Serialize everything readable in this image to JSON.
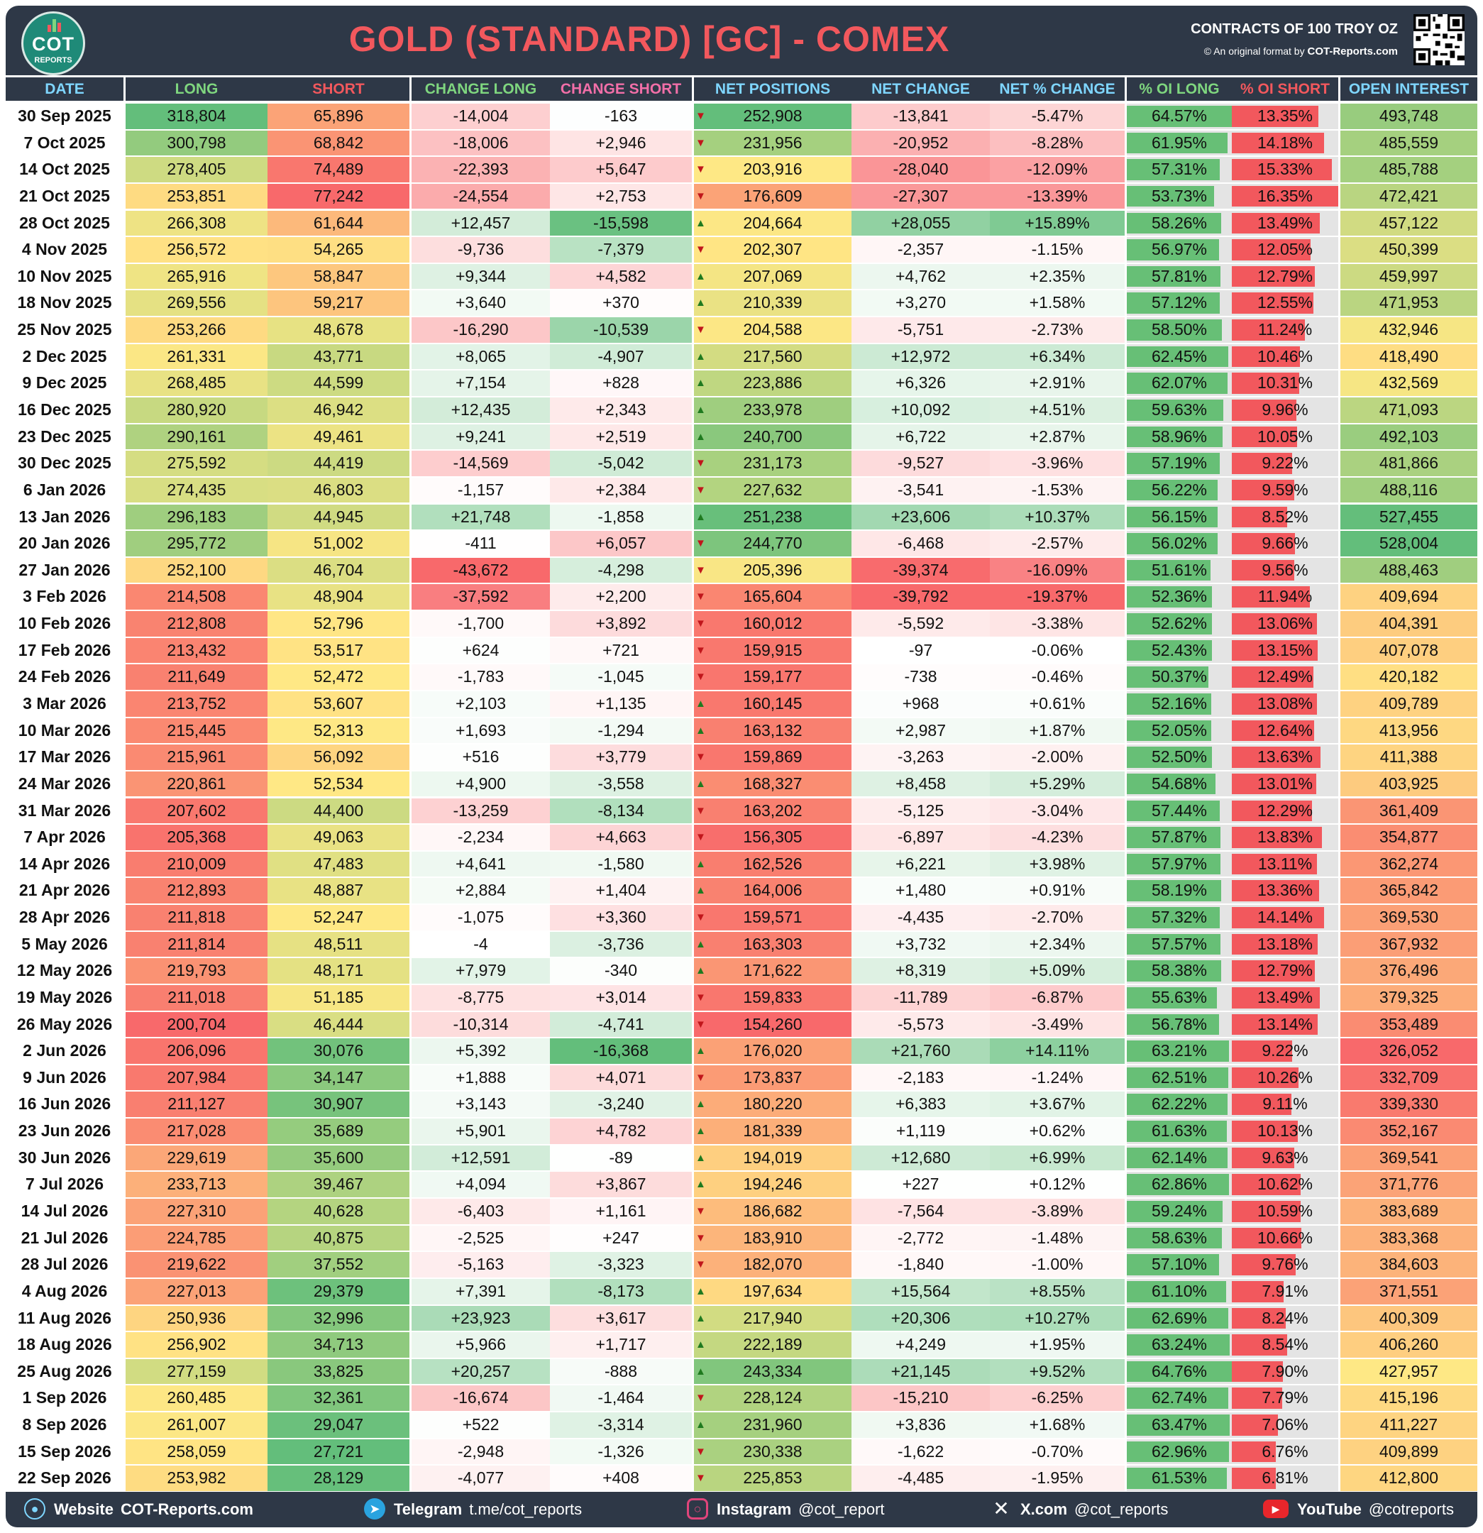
{
  "header": {
    "title": "GOLD (STANDARD) [GC] - COMEX",
    "contracts": "CONTRACTS OF 100 TROY OZ",
    "original_prefix": "© An original format by",
    "original_site": "COT-Reports.com",
    "logo_text": "COT",
    "logo_sub": "REPORTS"
  },
  "columns": {
    "date": "DATE",
    "long": "LONG",
    "short": "SHORT",
    "change_long": "CHANGE LONG",
    "change_short": "CHANGE SHORT",
    "net_positions": "NET POSITIONS",
    "net_change": "NET CHANGE",
    "net_pct_change": "NET % CHANGE",
    "oi_long": "% OI LONG",
    "oi_short": "% OI SHORT",
    "open_interest": "OPEN INTEREST"
  },
  "colors": {
    "header_bg": "#2e3847",
    "long_header": "#7fd67f",
    "short_header": "#f2585d",
    "accent": "#f2585d"
  },
  "rows": [
    [
      "30 Sep 2025",
      "318,804",
      "65,896",
      "-14,004",
      "-163",
      "252,908",
      "-13,841",
      "-5.47%",
      "64.57%",
      "13.35%",
      "493,748"
    ],
    [
      "7 Oct 2025",
      "300,798",
      "68,842",
      "-18,006",
      "+2,946",
      "231,956",
      "-20,952",
      "-8.28%",
      "61.95%",
      "14.18%",
      "485,559"
    ],
    [
      "14 Oct 2025",
      "278,405",
      "74,489",
      "-22,393",
      "+5,647",
      "203,916",
      "-28,040",
      "-12.09%",
      "57.31%",
      "15.33%",
      "485,788"
    ],
    [
      "21 Oct 2025",
      "253,851",
      "77,242",
      "-24,554",
      "+2,753",
      "176,609",
      "-27,307",
      "-13.39%",
      "53.73%",
      "16.35%",
      "472,421"
    ],
    [
      "28 Oct 2025",
      "266,308",
      "61,644",
      "+12,457",
      "-15,598",
      "204,664",
      "+28,055",
      "+15.89%",
      "58.26%",
      "13.49%",
      "457,122"
    ],
    [
      "4 Nov 2025",
      "256,572",
      "54,265",
      "-9,736",
      "-7,379",
      "202,307",
      "-2,357",
      "-1.15%",
      "56.97%",
      "12.05%",
      "450,399"
    ],
    [
      "10 Nov 2025",
      "265,916",
      "58,847",
      "+9,344",
      "+4,582",
      "207,069",
      "+4,762",
      "+2.35%",
      "57.81%",
      "12.79%",
      "459,997"
    ],
    [
      "18 Nov 2025",
      "269,556",
      "59,217",
      "+3,640",
      "+370",
      "210,339",
      "+3,270",
      "+1.58%",
      "57.12%",
      "12.55%",
      "471,953"
    ],
    [
      "25 Nov 2025",
      "253,266",
      "48,678",
      "-16,290",
      "-10,539",
      "204,588",
      "-5,751",
      "-2.73%",
      "58.50%",
      "11.24%",
      "432,946"
    ],
    [
      "2 Dec 2025",
      "261,331",
      "43,771",
      "+8,065",
      "-4,907",
      "217,560",
      "+12,972",
      "+6.34%",
      "62.45%",
      "10.46%",
      "418,490"
    ],
    [
      "9 Dec 2025",
      "268,485",
      "44,599",
      "+7,154",
      "+828",
      "223,886",
      "+6,326",
      "+2.91%",
      "62.07%",
      "10.31%",
      "432,569"
    ],
    [
      "16 Dec 2025",
      "280,920",
      "46,942",
      "+12,435",
      "+2,343",
      "233,978",
      "+10,092",
      "+4.51%",
      "59.63%",
      "9.96%",
      "471,093"
    ],
    [
      "23 Dec 2025",
      "290,161",
      "49,461",
      "+9,241",
      "+2,519",
      "240,700",
      "+6,722",
      "+2.87%",
      "58.96%",
      "10.05%",
      "492,103"
    ],
    [
      "30 Dec 2025",
      "275,592",
      "44,419",
      "-14,569",
      "-5,042",
      "231,173",
      "-9,527",
      "-3.96%",
      "57.19%",
      "9.22%",
      "481,866"
    ],
    [
      "6 Jan 2026",
      "274,435",
      "46,803",
      "-1,157",
      "+2,384",
      "227,632",
      "-3,541",
      "-1.53%",
      "56.22%",
      "9.59%",
      "488,116"
    ],
    [
      "13 Jan 2026",
      "296,183",
      "44,945",
      "+21,748",
      "-1,858",
      "251,238",
      "+23,606",
      "+10.37%",
      "56.15%",
      "8.52%",
      "527,455"
    ],
    [
      "20 Jan 2026",
      "295,772",
      "51,002",
      "-411",
      "+6,057",
      "244,770",
      "-6,468",
      "-2.57%",
      "56.02%",
      "9.66%",
      "528,004"
    ],
    [
      "27 Jan 2026",
      "252,100",
      "46,704",
      "-43,672",
      "-4,298",
      "205,396",
      "-39,374",
      "-16.09%",
      "51.61%",
      "9.56%",
      "488,463"
    ],
    [
      "3 Feb 2026",
      "214,508",
      "48,904",
      "-37,592",
      "+2,200",
      "165,604",
      "-39,792",
      "-19.37%",
      "52.36%",
      "11.94%",
      "409,694"
    ],
    [
      "10 Feb 2026",
      "212,808",
      "52,796",
      "-1,700",
      "+3,892",
      "160,012",
      "-5,592",
      "-3.38%",
      "52.62%",
      "13.06%",
      "404,391"
    ],
    [
      "17 Feb 2026",
      "213,432",
      "53,517",
      "+624",
      "+721",
      "159,915",
      "-97",
      "-0.06%",
      "52.43%",
      "13.15%",
      "407,078"
    ],
    [
      "24 Feb 2026",
      "211,649",
      "52,472",
      "-1,783",
      "-1,045",
      "159,177",
      "-738",
      "-0.46%",
      "50.37%",
      "12.49%",
      "420,182"
    ],
    [
      "3 Mar 2026",
      "213,752",
      "53,607",
      "+2,103",
      "+1,135",
      "160,145",
      "+968",
      "+0.61%",
      "52.16%",
      "13.08%",
      "409,789"
    ],
    [
      "10 Mar 2026",
      "215,445",
      "52,313",
      "+1,693",
      "-1,294",
      "163,132",
      "+2,987",
      "+1.87%",
      "52.05%",
      "12.64%",
      "413,956"
    ],
    [
      "17 Mar 2026",
      "215,961",
      "56,092",
      "+516",
      "+3,779",
      "159,869",
      "-3,263",
      "-2.00%",
      "52.50%",
      "13.63%",
      "411,388"
    ],
    [
      "24 Mar 2026",
      "220,861",
      "52,534",
      "+4,900",
      "-3,558",
      "168,327",
      "+8,458",
      "+5.29%",
      "54.68%",
      "13.01%",
      "403,925"
    ],
    [
      "31 Mar 2026",
      "207,602",
      "44,400",
      "-13,259",
      "-8,134",
      "163,202",
      "-5,125",
      "-3.04%",
      "57.44%",
      "12.29%",
      "361,409"
    ],
    [
      "7 Apr 2026",
      "205,368",
      "49,063",
      "-2,234",
      "+4,663",
      "156,305",
      "-6,897",
      "-4.23%",
      "57.87%",
      "13.83%",
      "354,877"
    ],
    [
      "14 Apr 2026",
      "210,009",
      "47,483",
      "+4,641",
      "-1,580",
      "162,526",
      "+6,221",
      "+3.98%",
      "57.97%",
      "13.11%",
      "362,274"
    ],
    [
      "21 Apr 2026",
      "212,893",
      "48,887",
      "+2,884",
      "+1,404",
      "164,006",
      "+1,480",
      "+0.91%",
      "58.19%",
      "13.36%",
      "365,842"
    ],
    [
      "28 Apr 2026",
      "211,818",
      "52,247",
      "-1,075",
      "+3,360",
      "159,571",
      "-4,435",
      "-2.70%",
      "57.32%",
      "14.14%",
      "369,530"
    ],
    [
      "5 May 2026",
      "211,814",
      "48,511",
      "-4",
      "-3,736",
      "163,303",
      "+3,732",
      "+2.34%",
      "57.57%",
      "13.18%",
      "367,932"
    ],
    [
      "12 May 2026",
      "219,793",
      "48,171",
      "+7,979",
      "-340",
      "171,622",
      "+8,319",
      "+5.09%",
      "58.38%",
      "12.79%",
      "376,496"
    ],
    [
      "19 May 2026",
      "211,018",
      "51,185",
      "-8,775",
      "+3,014",
      "159,833",
      "-11,789",
      "-6.87%",
      "55.63%",
      "13.49%",
      "379,325"
    ],
    [
      "26 May 2026",
      "200,704",
      "46,444",
      "-10,314",
      "-4,741",
      "154,260",
      "-5,573",
      "-3.49%",
      "56.78%",
      "13.14%",
      "353,489"
    ],
    [
      "2 Jun 2026",
      "206,096",
      "30,076",
      "+5,392",
      "-16,368",
      "176,020",
      "+21,760",
      "+14.11%",
      "63.21%",
      "9.22%",
      "326,052"
    ],
    [
      "9 Jun 2026",
      "207,984",
      "34,147",
      "+1,888",
      "+4,071",
      "173,837",
      "-2,183",
      "-1.24%",
      "62.51%",
      "10.26%",
      "332,709"
    ],
    [
      "16 Jun 2026",
      "211,127",
      "30,907",
      "+3,143",
      "-3,240",
      "180,220",
      "+6,383",
      "+3.67%",
      "62.22%",
      "9.11%",
      "339,330"
    ],
    [
      "23 Jun 2026",
      "217,028",
      "35,689",
      "+5,901",
      "+4,782",
      "181,339",
      "+1,119",
      "+0.62%",
      "61.63%",
      "10.13%",
      "352,167"
    ],
    [
      "30 Jun 2026",
      "229,619",
      "35,600",
      "+12,591",
      "-89",
      "194,019",
      "+12,680",
      "+6.99%",
      "62.14%",
      "9.63%",
      "369,541"
    ],
    [
      "7 Jul 2026",
      "233,713",
      "39,467",
      "+4,094",
      "+3,867",
      "194,246",
      "+227",
      "+0.12%",
      "62.86%",
      "10.62%",
      "371,776"
    ],
    [
      "14 Jul 2026",
      "227,310",
      "40,628",
      "-6,403",
      "+1,161",
      "186,682",
      "-7,564",
      "-3.89%",
      "59.24%",
      "10.59%",
      "383,689"
    ],
    [
      "21 Jul 2026",
      "224,785",
      "40,875",
      "-2,525",
      "+247",
      "183,910",
      "-2,772",
      "-1.48%",
      "58.63%",
      "10.66%",
      "383,368"
    ],
    [
      "28 Jul 2026",
      "219,622",
      "37,552",
      "-5,163",
      "-3,323",
      "182,070",
      "-1,840",
      "-1.00%",
      "57.10%",
      "9.76%",
      "384,603"
    ],
    [
      "4 Aug 2026",
      "227,013",
      "29,379",
      "+7,391",
      "-8,173",
      "197,634",
      "+15,564",
      "+8.55%",
      "61.10%",
      "7.91%",
      "371,551"
    ],
    [
      "11 Aug 2026",
      "250,936",
      "32,996",
      "+23,923",
      "+3,617",
      "217,940",
      "+20,306",
      "+10.27%",
      "62.69%",
      "8.24%",
      "400,309"
    ],
    [
      "18 Aug 2026",
      "256,902",
      "34,713",
      "+5,966",
      "+1,717",
      "222,189",
      "+4,249",
      "+1.95%",
      "63.24%",
      "8.54%",
      "406,260"
    ],
    [
      "25 Aug 2026",
      "277,159",
      "33,825",
      "+20,257",
      "-888",
      "243,334",
      "+21,145",
      "+9.52%",
      "64.76%",
      "7.90%",
      "427,957"
    ],
    [
      "1 Sep 2026",
      "260,485",
      "32,361",
      "-16,674",
      "-1,464",
      "228,124",
      "-15,210",
      "-6.25%",
      "62.74%",
      "7.79%",
      "415,196"
    ],
    [
      "8 Sep 2026",
      "261,007",
      "29,047",
      "+522",
      "-3,314",
      "231,960",
      "+3,836",
      "+1.68%",
      "63.47%",
      "7.06%",
      "411,227"
    ],
    [
      "15 Sep 2026",
      "258,059",
      "27,721",
      "-2,948",
      "-1,326",
      "230,338",
      "-1,622",
      "-0.70%",
      "62.96%",
      "6.76%",
      "409,899"
    ],
    [
      "22 Sep 2026",
      "253,982",
      "28,129",
      "-4,077",
      "+408",
      "225,853",
      "-4,485",
      "-1.95%",
      "61.53%",
      "6.81%",
      "412,800"
    ]
  ],
  "footer": {
    "website_label": "Website",
    "website_value": "COT-Reports.com",
    "telegram_label": "Telegram",
    "telegram_value": "t.me/cot_reports",
    "instagram_label": "Instagram",
    "instagram_value": "@cot_report",
    "x_label": "X.com",
    "x_value": "@cot_reports",
    "youtube_label": "YouTube",
    "youtube_value": "@cotreports"
  }
}
